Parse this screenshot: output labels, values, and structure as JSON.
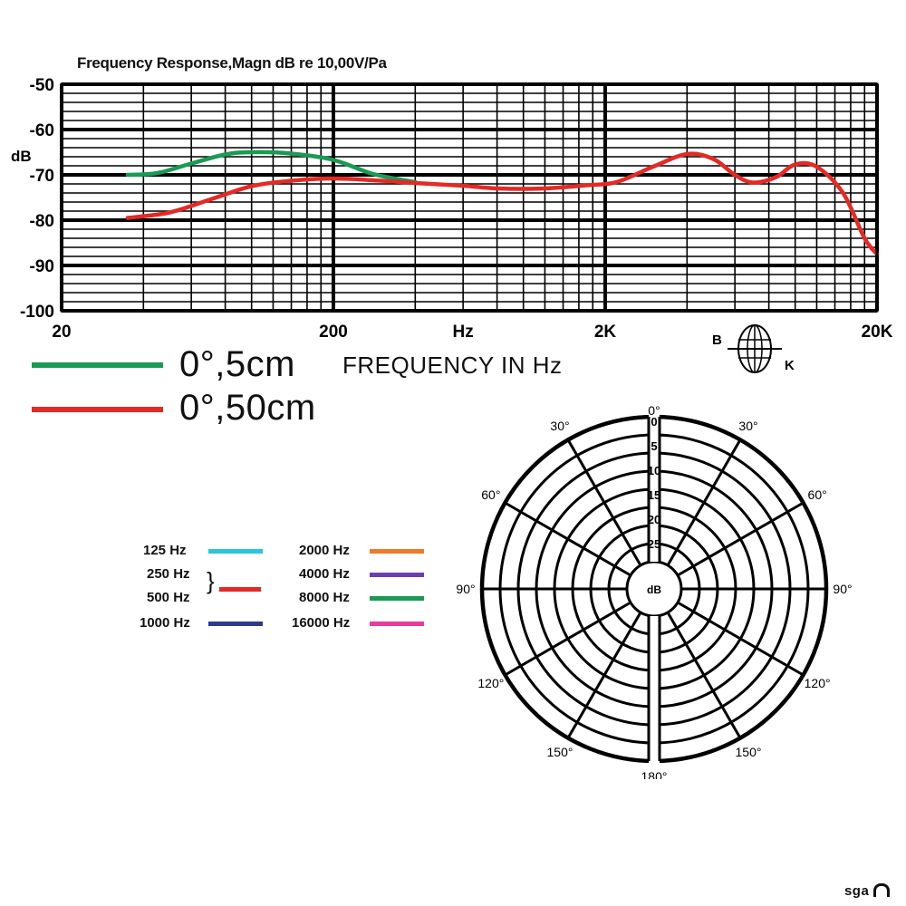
{
  "chart_data": [
    {
      "type": "line",
      "title": "Frequency Response,Magn dB re 10,00V/Pa",
      "xlabel": "FREQUENCY IN Hz",
      "ylabel": "dB",
      "x_scale": "log",
      "xlim": [
        20,
        20000
      ],
      "ylim": [
        -100,
        -50
      ],
      "y_ticks": [
        "-50",
        "-60",
        "-70",
        "-80",
        "-90",
        "-100"
      ],
      "x_ticks": [
        "20",
        "200",
        "Hz",
        "2K",
        "20K"
      ],
      "grid": true,
      "series": [
        {
          "name": "0°,5cm",
          "color": "#1a9a55",
          "points": [
            [
              35,
              -70
            ],
            [
              45,
              -69.6
            ],
            [
              60,
              -67.5
            ],
            [
              80,
              -65.5
            ],
            [
              100,
              -65
            ],
            [
              140,
              -65.3
            ],
            [
              200,
              -66.7
            ],
            [
              280,
              -69.8
            ],
            [
              400,
              -71.6
            ]
          ]
        },
        {
          "name": "0°,50cm",
          "color": "#e32a25",
          "points": [
            [
              35,
              -79.5
            ],
            [
              50,
              -78.3
            ],
            [
              70,
              -75.5
            ],
            [
              100,
              -72.5
            ],
            [
              140,
              -71.3
            ],
            [
              200,
              -70.8
            ],
            [
              300,
              -71.3
            ],
            [
              400,
              -71.8
            ],
            [
              600,
              -72.4
            ],
            [
              800,
              -73
            ],
            [
              1200,
              -73
            ],
            [
              1700,
              -72.3
            ],
            [
              2200,
              -71.6
            ],
            [
              3000,
              -68.2
            ],
            [
              4000,
              -65.4
            ],
            [
              5000,
              -66.5
            ],
            [
              6000,
              -70
            ],
            [
              7000,
              -71.7
            ],
            [
              8500,
              -70.5
            ],
            [
              10000,
              -67.7
            ],
            [
              12000,
              -68.2
            ],
            [
              15000,
              -74
            ],
            [
              18000,
              -84
            ],
            [
              20000,
              -87.5
            ]
          ]
        }
      ],
      "legend_position": "bottom-left",
      "pattern_label_left": "B",
      "pattern_label_right": "K"
    },
    {
      "type": "polar",
      "radial_ticks": [
        "0",
        "5",
        "10",
        "15",
        "20",
        "25"
      ],
      "radial_unit": "dB",
      "angle_labels": [
        "0°",
        "30°",
        "60°",
        "90°",
        "120°",
        "150°",
        "180°",
        "150°",
        "120°",
        "90°",
        "60°",
        "30°"
      ],
      "series": [
        {
          "name": "125 Hz",
          "color": "#2bc4de"
        },
        {
          "name": "250 Hz",
          "color": "#e32a25",
          "group": "250 Hz / 500 Hz"
        },
        {
          "name": "500 Hz",
          "color": "#e32a25",
          "group": "250 Hz / 500 Hz"
        },
        {
          "name": "1000 Hz",
          "color": "#2e3a8f"
        },
        {
          "name": "2000 Hz",
          "color": "#f07a2a"
        },
        {
          "name": "4000 Hz",
          "color": "#6a3fb0"
        },
        {
          "name": "8000 Hz",
          "color": "#1a9a55"
        },
        {
          "name": "16000 Hz",
          "color": "#e83aa0"
        }
      ],
      "legend_position": "left"
    }
  ],
  "legend": {
    "green_label": "0°,5cm",
    "red_label": "0°,50cm",
    "green_color": "#1a9a55",
    "red_color": "#e32a25"
  },
  "brand": "sga"
}
